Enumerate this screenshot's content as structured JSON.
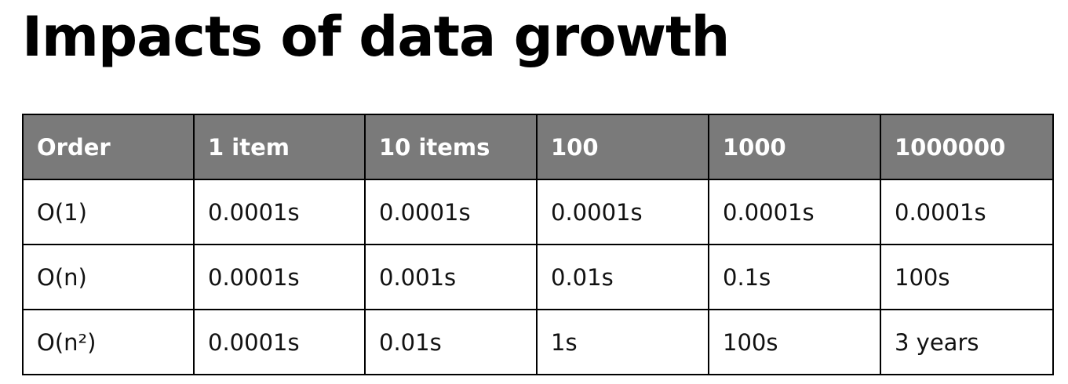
{
  "title": "Impacts of data growth",
  "colors": {
    "header_background": "#7a7a7a",
    "header_text": "#ffffff",
    "border": "#000000"
  },
  "table": {
    "headers": [
      "Order",
      "1 item",
      "10 items",
      "100",
      "1000",
      "1000000"
    ],
    "rows": [
      [
        "O(1)",
        "0.0001s",
        "0.0001s",
        "0.0001s",
        "0.0001s",
        "0.0001s"
      ],
      [
        "O(n)",
        "0.0001s",
        "0.001s",
        "0.01s",
        "0.1s",
        "100s"
      ],
      [
        "O(n²)",
        "0.0001s",
        "0.01s",
        "1s",
        "100s",
        "3 years"
      ]
    ]
  }
}
